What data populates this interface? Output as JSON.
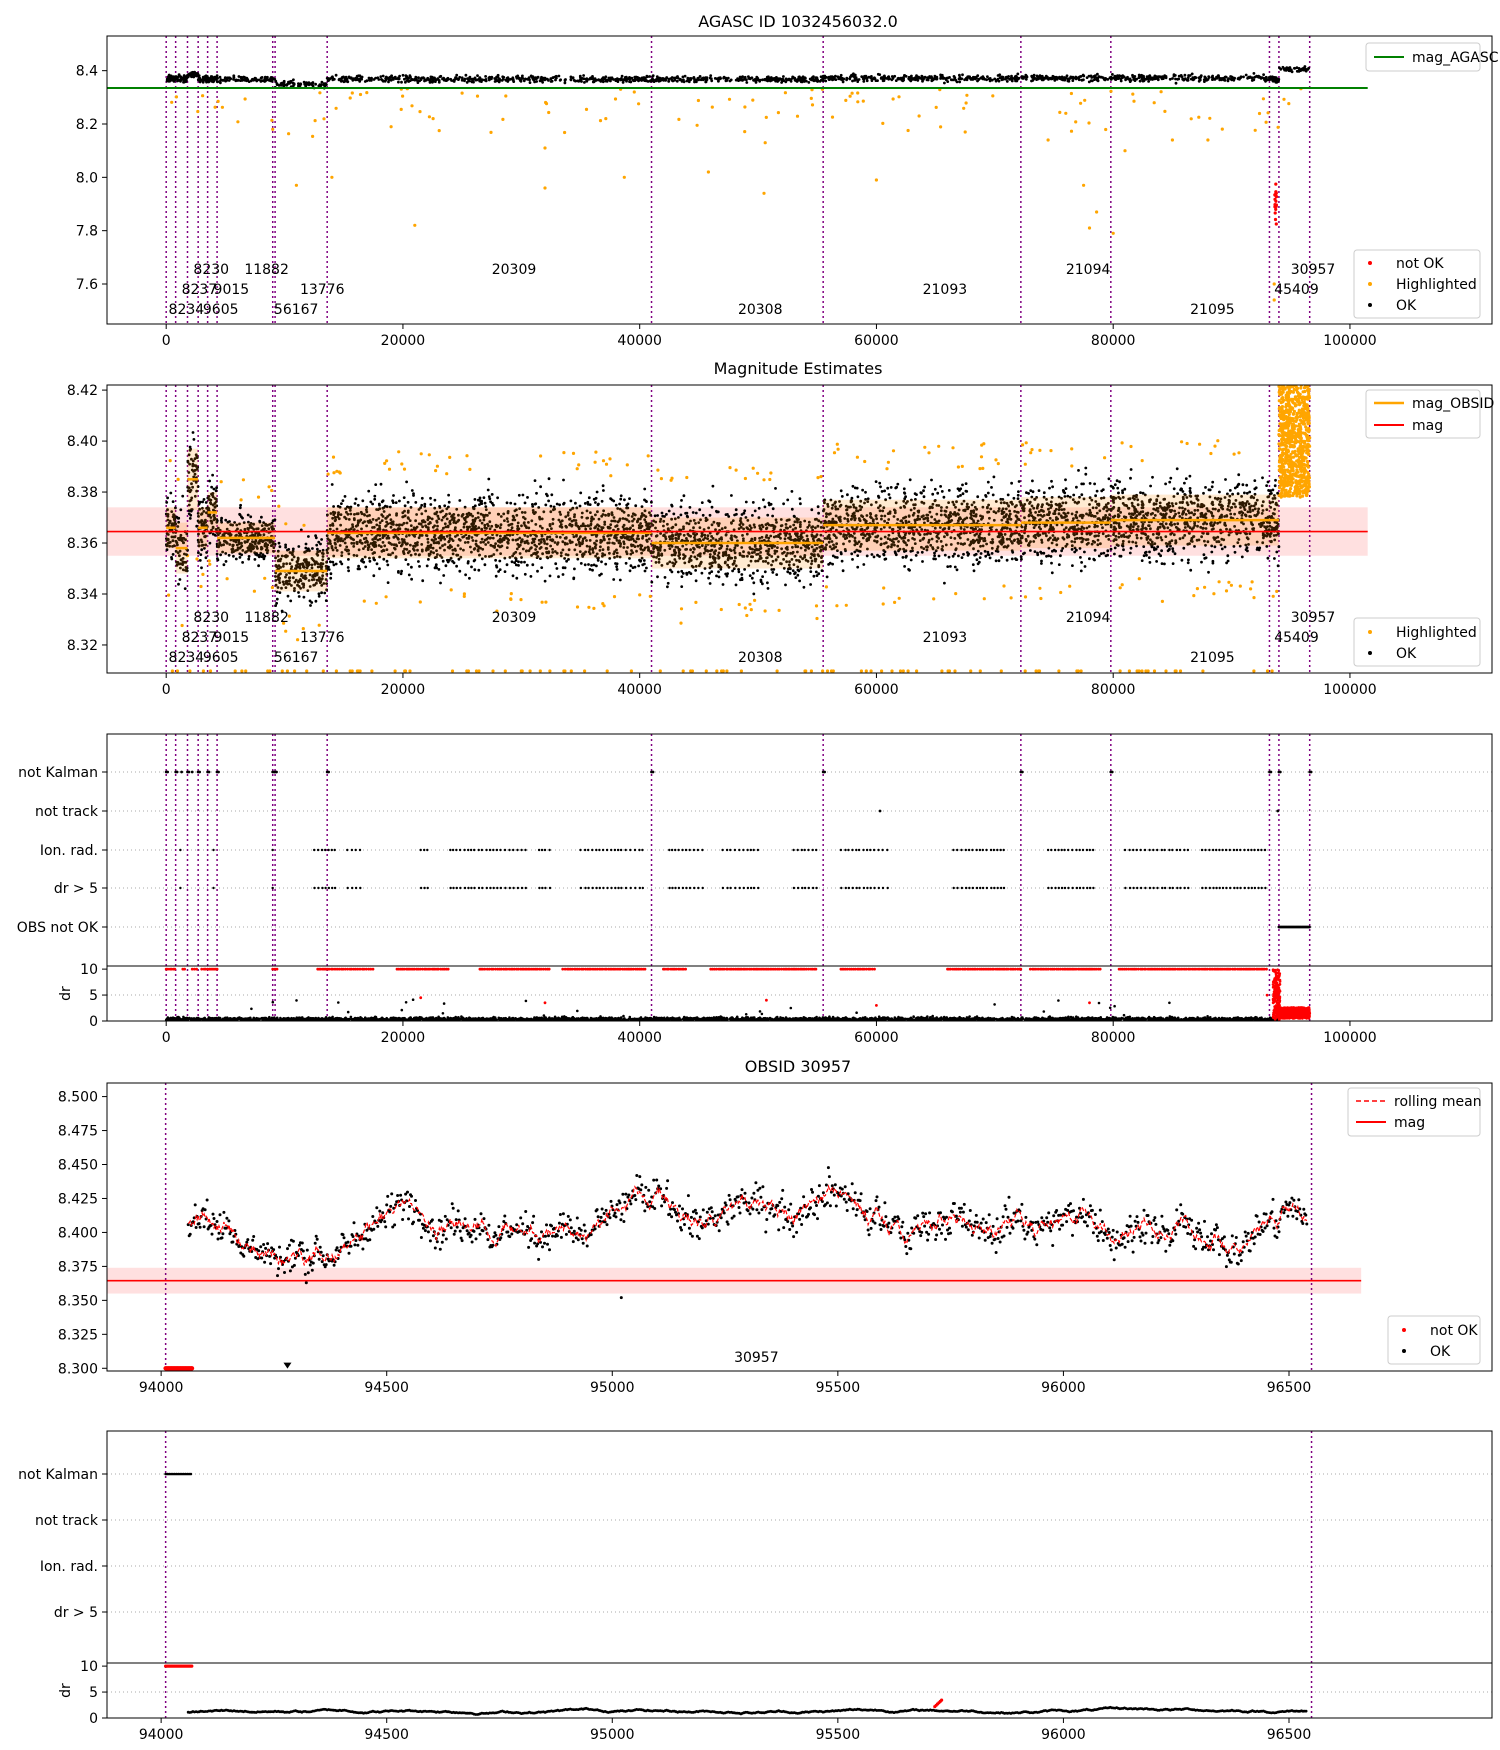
{
  "chart_data": [
    {
      "type": "scatter",
      "title": "AGASC ID 1032456032.0",
      "xlim": [
        -5000,
        112000
      ],
      "ylim": [
        7.45,
        8.53
      ],
      "xticks": [
        0,
        20000,
        40000,
        60000,
        80000,
        100000
      ],
      "xtick_labels": [
        "0",
        "20000",
        "40000",
        "60000",
        "80000",
        "100000"
      ],
      "yticks": [
        7.6,
        7.8,
        8.0,
        8.2,
        8.4
      ],
      "ytick_labels": [
        "7.6",
        "7.8",
        "8.0",
        "8.2",
        "8.4"
      ],
      "reference_line": {
        "label": "mag_AGASC",
        "value": 8.335,
        "color": "#008000"
      },
      "legend_top": {
        "entries": [
          "mag_AGASC"
        ],
        "position": "top-right"
      },
      "legend_bottom": {
        "entries": [
          "not OK",
          "Highlighted",
          "OK"
        ],
        "position": "bottom-right"
      },
      "series": [
        {
          "name": "not OK",
          "color": "#ff0000"
        },
        {
          "name": "Highlighted",
          "color": "#ffa500"
        },
        {
          "name": "OK",
          "color": "#000000"
        }
      ],
      "obsid_boundaries": [
        0,
        800,
        1800,
        2700,
        3500,
        4300,
        9000,
        9200,
        13600,
        41000,
        55500,
        72200,
        79800,
        93200,
        94000,
        96600
      ],
      "obsid_labels": [
        {
          "text": "8230",
          "x": 2300,
          "row": 0
        },
        {
          "text": "11882",
          "x": 6600,
          "row": 0
        },
        {
          "text": "20309",
          "x": 27500,
          "row": 0
        },
        {
          "text": "21094",
          "x": 76000,
          "row": 0
        },
        {
          "text": "30957",
          "x": 95000,
          "row": 0
        },
        {
          "text": "8237",
          "x": 1300,
          "row": 1
        },
        {
          "text": "9015",
          "x": 4000,
          "row": 1
        },
        {
          "text": "13776",
          "x": 11300,
          "row": 1
        },
        {
          "text": "21093",
          "x": 63900,
          "row": 1
        },
        {
          "text": "45409",
          "x": 93600,
          "row": 1
        },
        {
          "text": "8234",
          "x": 200,
          "row": 2
        },
        {
          "text": "9605",
          "x": 3100,
          "row": 2
        },
        {
          "text": "56167",
          "x": 9100,
          "row": 2
        },
        {
          "text": "20308",
          "x": 48300,
          "row": 2
        },
        {
          "text": "21095",
          "x": 86500,
          "row": 2
        }
      ],
      "segments": [
        {
          "x0": 0,
          "x1": 800,
          "mag": 8.37
        },
        {
          "x0": 800,
          "x1": 1800,
          "mag": 8.37
        },
        {
          "x0": 1800,
          "x1": 2700,
          "mag": 8.385
        },
        {
          "x0": 2700,
          "x1": 3500,
          "mag": 8.37
        },
        {
          "x0": 3500,
          "x1": 4300,
          "mag": 8.368
        },
        {
          "x0": 4300,
          "x1": 9200,
          "mag": 8.368
        },
        {
          "x0": 9200,
          "x1": 13600,
          "mag": 8.35
        },
        {
          "x0": 13600,
          "x1": 41000,
          "mag": 8.368
        },
        {
          "x0": 41000,
          "x1": 55500,
          "mag": 8.368
        },
        {
          "x0": 55500,
          "x1": 72200,
          "mag": 8.372
        },
        {
          "x0": 72200,
          "x1": 79800,
          "mag": 8.372
        },
        {
          "x0": 79800,
          "x1": 93200,
          "mag": 8.372
        },
        {
          "x0": 93200,
          "x1": 94000,
          "mag": 8.368
        },
        {
          "x0": 94000,
          "x1": 96600,
          "mag": 8.405
        }
      ],
      "outliers": [
        [
          9000,
          8.18
        ],
        [
          11000,
          7.97
        ],
        [
          14000,
          8.0
        ],
        [
          19000,
          8.19
        ],
        [
          21000,
          7.82
        ],
        [
          32000,
          8.11
        ],
        [
          32000,
          7.96
        ],
        [
          38700,
          8.0
        ],
        [
          45800,
          8.02
        ],
        [
          50600,
          8.13
        ],
        [
          50500,
          7.94
        ],
        [
          60000,
          7.99
        ],
        [
          67500,
          8.17
        ],
        [
          74500,
          8.14
        ],
        [
          76000,
          8.24
        ],
        [
          77500,
          7.97
        ],
        [
          78000,
          7.81
        ],
        [
          78600,
          7.87
        ],
        [
          80000,
          7.79
        ],
        [
          81000,
          8.1
        ],
        [
          85000,
          8.14
        ],
        [
          88000,
          8.14
        ],
        [
          93600,
          7.6
        ],
        [
          93600,
          7.54
        ]
      ]
    },
    {
      "type": "scatter",
      "title": "Magnitude Estimates",
      "xlim": [
        -5000,
        112000
      ],
      "ylim": [
        8.309,
        8.422
      ],
      "xticks": [
        0,
        20000,
        40000,
        60000,
        80000,
        100000
      ],
      "xtick_labels": [
        "0",
        "20000",
        "40000",
        "60000",
        "80000",
        "100000"
      ],
      "yticks": [
        8.32,
        8.34,
        8.36,
        8.38,
        8.4,
        8.42
      ],
      "ytick_labels": [
        "8.32",
        "8.34",
        "8.36",
        "8.38",
        "8.40",
        "8.42"
      ],
      "mag_line": {
        "label": "mag",
        "value": 8.3645,
        "band": [
          8.355,
          8.374
        ],
        "color": "#ff0000"
      },
      "legend_top": {
        "entries": [
          "mag_OBSID",
          "mag"
        ],
        "position": "top-right"
      },
      "legend_bottom": {
        "entries": [
          "Highlighted",
          "OK"
        ],
        "position": "bottom-right"
      },
      "series": [
        {
          "name": "Highlighted",
          "color": "#ffa500"
        },
        {
          "name": "OK",
          "color": "#000000"
        }
      ],
      "obsid_mags": [
        {
          "x0": 0,
          "x1": 800,
          "mag": 8.366,
          "spread": 0.008
        },
        {
          "x0": 800,
          "x1": 1800,
          "mag": 8.358,
          "spread": 0.01
        },
        {
          "x0": 1800,
          "x1": 2700,
          "mag": 8.385,
          "spread": 0.012
        },
        {
          "x0": 2700,
          "x1": 3500,
          "mag": 8.366,
          "spread": 0.008
        },
        {
          "x0": 3500,
          "x1": 4300,
          "mag": 8.372,
          "spread": 0.008
        },
        {
          "x0": 4300,
          "x1": 9200,
          "mag": 8.362,
          "spread": 0.006
        },
        {
          "x0": 9200,
          "x1": 13600,
          "mag": 8.349,
          "spread": 0.008
        },
        {
          "x0": 13600,
          "x1": 41000,
          "mag": 8.364,
          "spread": 0.01
        },
        {
          "x0": 41000,
          "x1": 55500,
          "mag": 8.36,
          "spread": 0.01
        },
        {
          "x0": 55500,
          "x1": 72200,
          "mag": 8.367,
          "spread": 0.01
        },
        {
          "x0": 72200,
          "x1": 79800,
          "mag": 8.368,
          "spread": 0.01
        },
        {
          "x0": 79800,
          "x1": 93200,
          "mag": 8.369,
          "spread": 0.01
        },
        {
          "x0": 93200,
          "x1": 94000,
          "mag": 8.369,
          "spread": 0.01
        }
      ]
    },
    {
      "type": "scatter",
      "title": "",
      "xlim": [
        -5000,
        112000
      ],
      "flag_rows": [
        "not Kalman",
        "not track",
        "Ion. rad.",
        "dr > 5",
        "OBS not OK"
      ],
      "dr_ylim": [
        0,
        10
      ],
      "dr_yticks": [
        0,
        5,
        10
      ],
      "dr_ytick_labels": [
        "0",
        "5",
        "10"
      ],
      "dr_ylabel": "dr",
      "xticks": [
        0,
        20000,
        40000,
        60000,
        80000,
        100000
      ],
      "xtick_labels": [
        "0",
        "20000",
        "40000",
        "60000",
        "80000",
        "100000"
      ]
    },
    {
      "type": "scatter",
      "title": "OBSID 30957",
      "xlim": [
        93880,
        96950
      ],
      "ylim": [
        8.298,
        8.51
      ],
      "xticks": [
        94000,
        94500,
        95000,
        95500,
        96000,
        96500
      ],
      "xtick_labels": [
        "94000",
        "94500",
        "95000",
        "95500",
        "96000",
        "96500"
      ],
      "yticks": [
        8.3,
        8.325,
        8.35,
        8.375,
        8.4,
        8.425,
        8.45,
        8.475,
        8.5
      ],
      "ytick_labels": [
        "8.300",
        "8.325",
        "8.350",
        "8.375",
        "8.400",
        "8.425",
        "8.450",
        "8.475",
        "8.500"
      ],
      "mag_line": {
        "label": "mag",
        "value": 8.3645,
        "band": [
          8.355,
          8.374
        ],
        "color": "#ff0000"
      },
      "legend_top": {
        "entries": [
          "rolling mean",
          "mag"
        ],
        "position": "top-right"
      },
      "legend_bottom": {
        "entries": [
          "not OK",
          "OK"
        ],
        "position": "bottom-right"
      },
      "obsid_label": {
        "text": "30957",
        "x": 95270
      },
      "obsid_boundaries": [
        94010,
        96550
      ],
      "series": [
        {
          "name": "not OK",
          "color": "#ff0000"
        },
        {
          "name": "OK",
          "color": "#000000"
        }
      ]
    },
    {
      "type": "scatter",
      "title": "",
      "xlim": [
        93880,
        96950
      ],
      "flag_rows": [
        "not Kalman",
        "not track",
        "Ion. rad.",
        "dr > 5"
      ],
      "dr_ylim": [
        0,
        10
      ],
      "dr_yticks": [
        0,
        5,
        10
      ],
      "dr_ytick_labels": [
        "0",
        "5",
        "10"
      ],
      "dr_ylabel": "dr",
      "xticks": [
        94000,
        94500,
        95000,
        95500,
        96000,
        96500
      ],
      "xtick_labels": [
        "94000",
        "94500",
        "95000",
        "95500",
        "96000",
        "96500"
      ],
      "obsid_boundaries": [
        94010,
        96550
      ]
    }
  ]
}
